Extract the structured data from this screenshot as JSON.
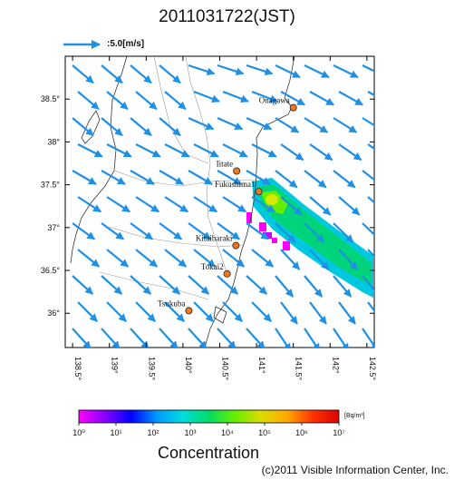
{
  "title": "2011031722(JST)",
  "wind_scale": {
    "label": ":5.0[m/s]"
  },
  "map": {
    "lon_range": [
      138.4,
      142.6
    ],
    "lat_range": [
      35.6,
      39.0
    ],
    "lon_ticks": [
      "138.5°",
      "139°",
      "139.5°",
      "140°",
      "140.5°",
      "141°",
      "141.5°",
      "142°",
      "142.5°"
    ],
    "lat_ticks": [
      "38.5°",
      "38°",
      "37.5°",
      "37°",
      "36.5°",
      "36°"
    ],
    "sites": [
      {
        "name": "Onagawa",
        "lon": 141.5,
        "lat": 38.4
      },
      {
        "name": "Iitate",
        "lon": 140.73,
        "lat": 37.66
      },
      {
        "name": "Fukushima1",
        "lon": 141.03,
        "lat": 37.42
      },
      {
        "name": "Kitaibaraki",
        "lon": 140.72,
        "lat": 36.79
      },
      {
        "name": "Tokai2",
        "lon": 140.6,
        "lat": 36.46
      },
      {
        "name": "Tsukuba",
        "lon": 140.08,
        "lat": 36.03
      }
    ],
    "wind_direction": "east-southeast",
    "plume_direction": "southeast"
  },
  "colorbar": {
    "title": "Concentration",
    "unit": "[Bq/m³]",
    "ticks": [
      "10⁰",
      "10¹",
      "10²",
      "10³",
      "10⁴",
      "10⁵",
      "10⁶",
      "10⁷"
    ],
    "colors": [
      "#ff00ff",
      "#8800ff",
      "#0000ff",
      "#0099ff",
      "#00dddd",
      "#00dd66",
      "#66ee00",
      "#dddd00",
      "#ffaa00",
      "#ff3300",
      "#dd0000"
    ]
  },
  "colors": {
    "wind_arrow": "#1e90e6",
    "coast": "#333333",
    "site": "#f07820"
  },
  "credit": "(c)2011 Visible Information Center, Inc."
}
